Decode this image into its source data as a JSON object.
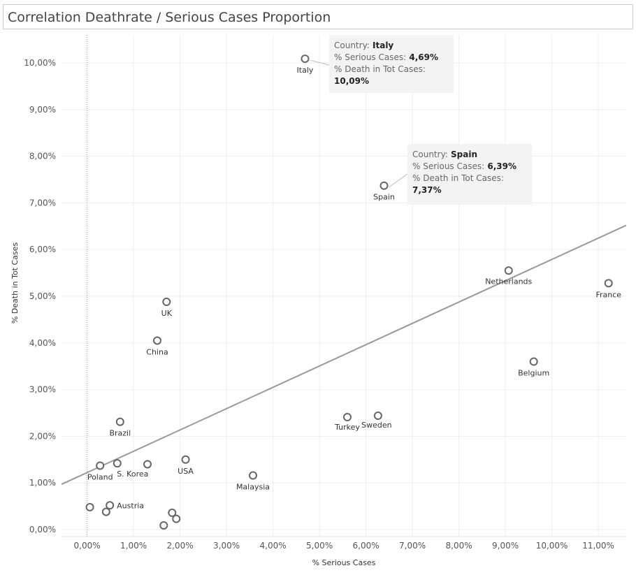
{
  "title": "Correlation Deathrate / Serious Cases Proportion",
  "chart_data": {
    "type": "scatter",
    "title": "Correlation Deathrate / Serious Cases Proportion",
    "xlabel": "% Serious Cases",
    "ylabel": "% Death in Tot Cases",
    "xlim": [
      -0.55,
      11.6
    ],
    "ylim": [
      -0.15,
      10.6
    ],
    "x_ticks": [
      "0,00%",
      "1,00%",
      "2,00%",
      "3,00%",
      "4,00%",
      "5,00%",
      "6,00%",
      "7,00%",
      "8,00%",
      "9,00%",
      "10,00%",
      "11,00%"
    ],
    "y_ticks": [
      "0,00%",
      "1,00%",
      "2,00%",
      "3,00%",
      "4,00%",
      "5,00%",
      "6,00%",
      "7,00%",
      "8,00%",
      "9,00%",
      "10,00%"
    ],
    "grid": true,
    "points": [
      {
        "label": "Italy",
        "x": 4.69,
        "y": 10.09
      },
      {
        "label": "Spain",
        "x": 6.39,
        "y": 7.37
      },
      {
        "label": "Netherlands",
        "x": 9.07,
        "y": 5.55
      },
      {
        "label": "France",
        "x": 11.22,
        "y": 5.28
      },
      {
        "label": "UK",
        "x": 1.71,
        "y": 4.88
      },
      {
        "label": "China",
        "x": 1.51,
        "y": 4.05
      },
      {
        "label": "Belgium",
        "x": 9.61,
        "y": 3.6
      },
      {
        "label": "Brazil",
        "x": 0.71,
        "y": 2.31
      },
      {
        "label": "Turkey",
        "x": 5.6,
        "y": 2.41
      },
      {
        "label": "Sweden",
        "x": 6.26,
        "y": 2.44
      },
      {
        "label": "USA",
        "x": 2.12,
        "y": 1.5
      },
      {
        "label": "S. Korea",
        "x": 0.65,
        "y": 1.42
      },
      {
        "label": "Poland",
        "x": 0.28,
        "y": 1.37
      },
      {
        "label": "",
        "x": 1.3,
        "y": 1.4
      },
      {
        "label": "Malaysia",
        "x": 3.57,
        "y": 1.16
      },
      {
        "label": "Austria",
        "x": 0.49,
        "y": 0.52
      },
      {
        "label": "",
        "x": 0.06,
        "y": 0.48
      },
      {
        "label": "",
        "x": 0.41,
        "y": 0.38
      },
      {
        "label": "",
        "x": 1.83,
        "y": 0.36
      },
      {
        "label": "",
        "x": 1.92,
        "y": 0.23
      },
      {
        "label": "",
        "x": 1.65,
        "y": 0.09
      }
    ],
    "trend_line": {
      "x": [
        -0.55,
        11.6
      ],
      "y": [
        0.97,
        6.52
      ]
    },
    "tooltips": [
      {
        "country_label": "Country:",
        "country": "Italy",
        "serious_label": "% Serious Cases:",
        "serious": "4,69%",
        "death_label": "% Death in Tot Cases:",
        "death": "10,09%"
      },
      {
        "country_label": "Country:",
        "country": "Spain",
        "serious_label": "% Serious Cases:",
        "serious": "6,39%",
        "death_label": "% Death in Tot Cases:",
        "death": "7,37%"
      }
    ],
    "colors": {
      "marker": "#666666",
      "trend": "#999999",
      "grid": "#eeeeee"
    }
  }
}
